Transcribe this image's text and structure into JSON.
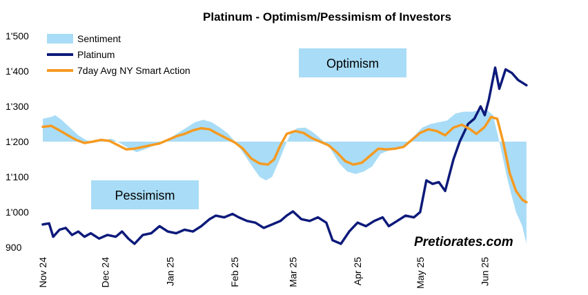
{
  "chart_data": {
    "type": "line",
    "title": "Platinum - Optimism/Pessimism of Investors",
    "ylim": [
      900,
      1500
    ],
    "yticks": [
      "1'500",
      "1'400",
      "1'300",
      "1'200",
      "1'100",
      "1'000",
      "900"
    ],
    "ytick_values": [
      1500,
      1400,
      1300,
      1200,
      1100,
      1000,
      900
    ],
    "xlim": [
      "2024-11-01",
      "2025-06-30"
    ],
    "xticks": [
      {
        "label": "Nov 24",
        "date": "2024-11-01"
      },
      {
        "label": "Dec 24",
        "date": "2024-12-01"
      },
      {
        "label": "Jan 25",
        "date": "2025-01-01"
      },
      {
        "label": "Feb 25",
        "date": "2025-02-01"
      },
      {
        "label": "Mar 25",
        "date": "2025-03-01"
      },
      {
        "label": "Apr 25",
        "date": "2025-04-01"
      },
      {
        "label": "May 25",
        "date": "2025-05-01"
      },
      {
        "label": "Jun 25",
        "date": "2025-06-01"
      }
    ],
    "grid": false,
    "legend_position": "top-left",
    "baseline": 1200,
    "series": [
      {
        "name": "Sentiment",
        "kind": "area",
        "color": "#a9dcf6",
        "points": [
          [
            "2024-11-01",
            1265
          ],
          [
            "2024-11-05",
            1270
          ],
          [
            "2024-11-07",
            1275
          ],
          [
            "2024-11-10",
            1262
          ],
          [
            "2024-11-14",
            1240
          ],
          [
            "2024-11-18",
            1218
          ],
          [
            "2024-11-22",
            1204
          ],
          [
            "2024-11-26",
            1198
          ],
          [
            "2024-11-30",
            1204
          ],
          [
            "2024-12-04",
            1208
          ],
          [
            "2024-12-08",
            1196
          ],
          [
            "2024-12-12",
            1182
          ],
          [
            "2024-12-16",
            1170
          ],
          [
            "2024-12-20",
            1178
          ],
          [
            "2024-12-24",
            1188
          ],
          [
            "2024-12-28",
            1195
          ],
          [
            "2025-01-01",
            1210
          ],
          [
            "2025-01-05",
            1225
          ],
          [
            "2025-01-09",
            1240
          ],
          [
            "2025-01-13",
            1255
          ],
          [
            "2025-01-17",
            1262
          ],
          [
            "2025-01-21",
            1255
          ],
          [
            "2025-01-25",
            1240
          ],
          [
            "2025-01-29",
            1222
          ],
          [
            "2025-02-02",
            1195
          ],
          [
            "2025-02-06",
            1160
          ],
          [
            "2025-02-10",
            1125
          ],
          [
            "2025-02-13",
            1100
          ],
          [
            "2025-02-16",
            1090
          ],
          [
            "2025-02-19",
            1100
          ],
          [
            "2025-02-22",
            1140
          ],
          [
            "2025-02-25",
            1185
          ],
          [
            "2025-02-28",
            1225
          ],
          [
            "2025-03-03",
            1238
          ],
          [
            "2025-03-07",
            1240
          ],
          [
            "2025-03-11",
            1225
          ],
          [
            "2025-03-15",
            1205
          ],
          [
            "2025-03-19",
            1180
          ],
          [
            "2025-03-23",
            1140
          ],
          [
            "2025-03-27",
            1115
          ],
          [
            "2025-03-31",
            1108
          ],
          [
            "2025-04-04",
            1115
          ],
          [
            "2025-04-08",
            1130
          ],
          [
            "2025-04-12",
            1165
          ],
          [
            "2025-04-16",
            1175
          ],
          [
            "2025-04-20",
            1178
          ],
          [
            "2025-04-24",
            1185
          ],
          [
            "2025-04-28",
            1215
          ],
          [
            "2025-05-02",
            1240
          ],
          [
            "2025-05-06",
            1250
          ],
          [
            "2025-05-10",
            1255
          ],
          [
            "2025-05-14",
            1260
          ],
          [
            "2025-05-18",
            1280
          ],
          [
            "2025-05-22",
            1285
          ],
          [
            "2025-05-26",
            1285
          ],
          [
            "2025-05-29",
            1288
          ],
          [
            "2025-06-02",
            1290
          ],
          [
            "2025-06-05",
            1275
          ],
          [
            "2025-06-08",
            1200
          ],
          [
            "2025-06-12",
            1090
          ],
          [
            "2025-06-16",
            1000
          ],
          [
            "2025-06-19",
            960
          ],
          [
            "2025-06-21",
            910
          ]
        ]
      },
      {
        "name": "Platinum",
        "kind": "line",
        "color": "#0d1a7a",
        "points": [
          [
            "2024-11-01",
            965
          ],
          [
            "2024-11-04",
            968
          ],
          [
            "2024-11-06",
            930
          ],
          [
            "2024-11-09",
            950
          ],
          [
            "2024-11-12",
            955
          ],
          [
            "2024-11-15",
            935
          ],
          [
            "2024-11-18",
            945
          ],
          [
            "2024-11-21",
            930
          ],
          [
            "2024-11-24",
            940
          ],
          [
            "2024-11-28",
            925
          ],
          [
            "2024-12-02",
            935
          ],
          [
            "2024-12-06",
            930
          ],
          [
            "2024-12-09",
            945
          ],
          [
            "2024-12-12",
            925
          ],
          [
            "2024-12-15",
            910
          ],
          [
            "2024-12-19",
            935
          ],
          [
            "2024-12-23",
            940
          ],
          [
            "2024-12-27",
            960
          ],
          [
            "2024-12-31",
            945
          ],
          [
            "2025-01-04",
            940
          ],
          [
            "2025-01-08",
            950
          ],
          [
            "2025-01-12",
            945
          ],
          [
            "2025-01-16",
            960
          ],
          [
            "2025-01-20",
            980
          ],
          [
            "2025-01-23",
            990
          ],
          [
            "2025-01-27",
            985
          ],
          [
            "2025-01-31",
            995
          ],
          [
            "2025-02-03",
            985
          ],
          [
            "2025-02-07",
            975
          ],
          [
            "2025-02-11",
            970
          ],
          [
            "2025-02-15",
            955
          ],
          [
            "2025-02-19",
            965
          ],
          [
            "2025-02-23",
            975
          ],
          [
            "2025-02-26",
            990
          ],
          [
            "2025-03-01",
            1002
          ],
          [
            "2025-03-05",
            980
          ],
          [
            "2025-03-09",
            975
          ],
          [
            "2025-03-13",
            985
          ],
          [
            "2025-03-17",
            970
          ],
          [
            "2025-03-20",
            920
          ],
          [
            "2025-03-24",
            910
          ],
          [
            "2025-03-28",
            945
          ],
          [
            "2025-04-01",
            970
          ],
          [
            "2025-04-05",
            960
          ],
          [
            "2025-04-09",
            975
          ],
          [
            "2025-04-13",
            985
          ],
          [
            "2025-04-16",
            960
          ],
          [
            "2025-04-20",
            975
          ],
          [
            "2025-04-24",
            990
          ],
          [
            "2025-04-28",
            985
          ],
          [
            "2025-05-01",
            1000
          ],
          [
            "2025-05-04",
            1090
          ],
          [
            "2025-05-07",
            1080
          ],
          [
            "2025-05-10",
            1085
          ],
          [
            "2025-05-13",
            1060
          ],
          [
            "2025-05-17",
            1150
          ],
          [
            "2025-05-20",
            1200
          ],
          [
            "2025-05-24",
            1250
          ],
          [
            "2025-05-27",
            1265
          ],
          [
            "2025-05-30",
            1300
          ],
          [
            "2025-06-01",
            1275
          ],
          [
            "2025-06-03",
            1320
          ],
          [
            "2025-06-06",
            1410
          ],
          [
            "2025-06-08",
            1350
          ],
          [
            "2025-06-11",
            1405
          ],
          [
            "2025-06-14",
            1395
          ],
          [
            "2025-06-17",
            1375
          ],
          [
            "2025-06-21",
            1360
          ]
        ]
      },
      {
        "name": "7day Avg NY Smart Action",
        "kind": "line",
        "color": "#f59a20",
        "points": [
          [
            "2024-11-01",
            1242
          ],
          [
            "2024-11-05",
            1245
          ],
          [
            "2024-11-09",
            1232
          ],
          [
            "2024-11-13",
            1218
          ],
          [
            "2024-11-17",
            1205
          ],
          [
            "2024-11-21",
            1196
          ],
          [
            "2024-11-25",
            1200
          ],
          [
            "2024-11-29",
            1205
          ],
          [
            "2024-12-03",
            1202
          ],
          [
            "2024-12-07",
            1190
          ],
          [
            "2024-12-11",
            1178
          ],
          [
            "2024-12-15",
            1180
          ],
          [
            "2024-12-19",
            1185
          ],
          [
            "2024-12-23",
            1190
          ],
          [
            "2024-12-27",
            1195
          ],
          [
            "2024-12-31",
            1205
          ],
          [
            "2025-01-04",
            1215
          ],
          [
            "2025-01-08",
            1222
          ],
          [
            "2025-01-12",
            1232
          ],
          [
            "2025-01-16",
            1238
          ],
          [
            "2025-01-20",
            1235
          ],
          [
            "2025-01-24",
            1222
          ],
          [
            "2025-01-28",
            1210
          ],
          [
            "2025-02-01",
            1198
          ],
          [
            "2025-02-05",
            1180
          ],
          [
            "2025-02-09",
            1152
          ],
          [
            "2025-02-13",
            1138
          ],
          [
            "2025-02-17",
            1135
          ],
          [
            "2025-02-20",
            1150
          ],
          [
            "2025-02-23",
            1190
          ],
          [
            "2025-02-26",
            1222
          ],
          [
            "2025-03-02",
            1230
          ],
          [
            "2025-03-06",
            1225
          ],
          [
            "2025-03-10",
            1210
          ],
          [
            "2025-03-14",
            1200
          ],
          [
            "2025-03-18",
            1190
          ],
          [
            "2025-03-22",
            1170
          ],
          [
            "2025-03-26",
            1145
          ],
          [
            "2025-03-30",
            1135
          ],
          [
            "2025-04-03",
            1140
          ],
          [
            "2025-04-07",
            1160
          ],
          [
            "2025-04-11",
            1180
          ],
          [
            "2025-04-15",
            1178
          ],
          [
            "2025-04-19",
            1180
          ],
          [
            "2025-04-23",
            1185
          ],
          [
            "2025-04-27",
            1205
          ],
          [
            "2025-05-01",
            1225
          ],
          [
            "2025-05-05",
            1235
          ],
          [
            "2025-05-09",
            1230
          ],
          [
            "2025-05-13",
            1218
          ],
          [
            "2025-05-17",
            1240
          ],
          [
            "2025-05-21",
            1248
          ],
          [
            "2025-05-25",
            1235
          ],
          [
            "2025-05-28",
            1222
          ],
          [
            "2025-06-01",
            1242
          ],
          [
            "2025-06-04",
            1270
          ],
          [
            "2025-06-07",
            1265
          ],
          [
            "2025-06-10",
            1195
          ],
          [
            "2025-06-13",
            1110
          ],
          [
            "2025-06-16",
            1060
          ],
          [
            "2025-06-19",
            1035
          ],
          [
            "2025-06-21",
            1028
          ]
        ]
      }
    ],
    "annotations": [
      {
        "text": "Optimism",
        "date": "2025-03-01",
        "value": 1390
      },
      {
        "text": "Pessimism",
        "date": "2024-12-05",
        "value": 1020
      },
      {
        "text": "Pretiorates.com",
        "date": "2025-05-20",
        "value": 950
      }
    ]
  },
  "colors": {
    "box_fill": "#a9dcf6"
  }
}
